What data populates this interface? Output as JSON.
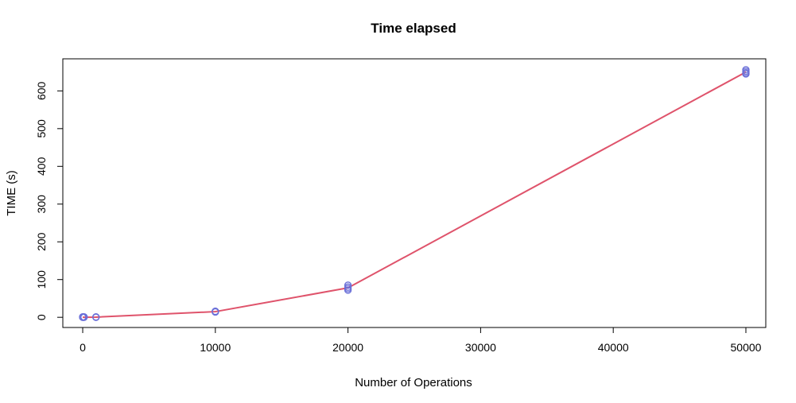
{
  "chart_data": {
    "type": "line",
    "title": "Time elapsed",
    "xlabel": "Number of Operations",
    "ylabel": "TIME (s)",
    "xlim": [
      -1500,
      51500
    ],
    "ylim": [
      -27,
      685
    ],
    "x_ticks": [
      0,
      10000,
      20000,
      30000,
      40000,
      50000
    ],
    "y_ticks": [
      0,
      100,
      200,
      300,
      400,
      500,
      600
    ],
    "grid": false,
    "line_series": {
      "x": [
        0,
        100,
        1000,
        10000,
        20000,
        50000
      ],
      "y": [
        0,
        0.1,
        0.5,
        15,
        78,
        650
      ]
    },
    "points": {
      "x": [
        0,
        0,
        0,
        100,
        100,
        1000,
        1000,
        10000,
        10000,
        10000,
        20000,
        20000,
        20000,
        20000,
        50000,
        50000,
        50000,
        50000
      ],
      "y": [
        0,
        0.5,
        1,
        0,
        1,
        0,
        1,
        14,
        15,
        16,
        72,
        76,
        80,
        85,
        645,
        648,
        652,
        656
      ]
    },
    "colors": {
      "line": "#DF536B",
      "points": "#6A6FD8",
      "axis": "#000000"
    }
  }
}
